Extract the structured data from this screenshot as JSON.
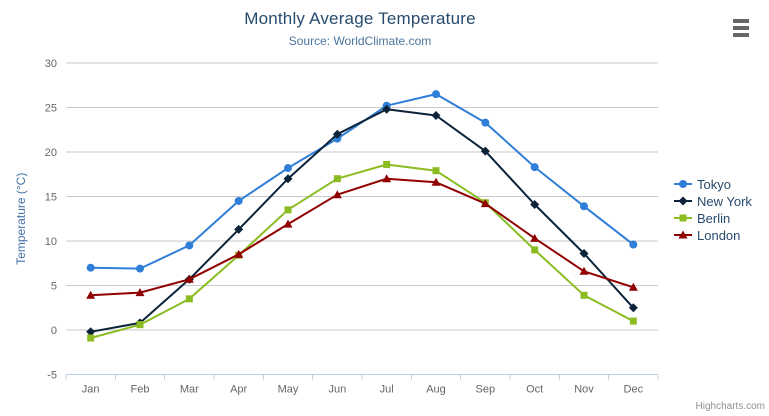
{
  "credits_label": "Highcharts.com",
  "export_menu": {
    "icon": "hamburger-menu-icon"
  },
  "chart_data": {
    "type": "line",
    "title": "Monthly Average Temperature",
    "subtitle": "Source: WorldClimate.com",
    "xlabel": "",
    "ylabel": "Temperature (°C)",
    "categories": [
      "Jan",
      "Feb",
      "Mar",
      "Apr",
      "May",
      "Jun",
      "Jul",
      "Aug",
      "Sep",
      "Oct",
      "Nov",
      "Dec"
    ],
    "ylim": [
      -5,
      30
    ],
    "ytick_step": 5,
    "grid": true,
    "legend_position": "right",
    "series": [
      {
        "name": "Tokyo",
        "marker": "circle",
        "color": "#2f7ed8",
        "values": [
          7.0,
          6.9,
          9.5,
          14.5,
          18.2,
          21.5,
          25.2,
          26.5,
          23.3,
          18.3,
          13.9,
          9.6
        ]
      },
      {
        "name": "New York",
        "marker": "diamond",
        "color": "#0d233a",
        "values": [
          -0.2,
          0.8,
          5.7,
          11.3,
          17.0,
          22.0,
          24.8,
          24.1,
          20.1,
          14.1,
          8.6,
          2.5
        ]
      },
      {
        "name": "Berlin",
        "marker": "square",
        "color": "#8bbc21",
        "values": [
          -0.9,
          0.6,
          3.5,
          8.4,
          13.5,
          17.0,
          18.6,
          17.9,
          14.3,
          9.0,
          3.9,
          1.0
        ]
      },
      {
        "name": "London",
        "marker": "triangle",
        "color": "#910000",
        "values": [
          3.9,
          4.2,
          5.7,
          8.5,
          11.9,
          15.2,
          17.0,
          16.6,
          14.2,
          10.3,
          6.6,
          4.8
        ]
      }
    ],
    "style": {
      "grid_color": "#c9c9c9",
      "axis_line_color": "#c0d0e0",
      "tick_label_color": "#666666",
      "axis_title_color": "#4572a7"
    }
  }
}
